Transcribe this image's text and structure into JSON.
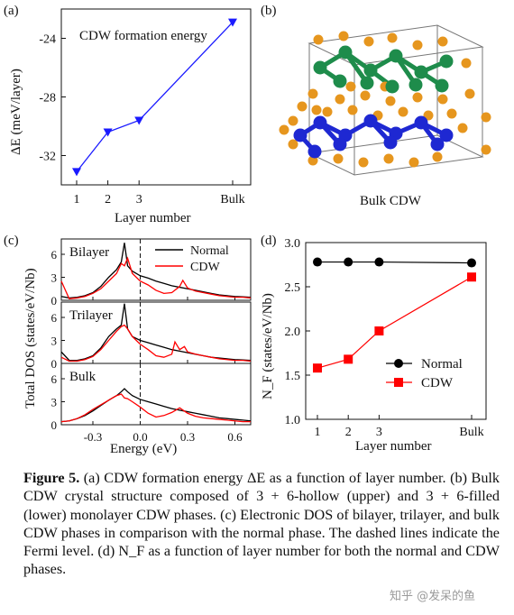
{
  "panel_a": {
    "label": "(a)",
    "annotation": "CDW formation energy",
    "ylabel": "ΔE (meV/layer)",
    "xlabel": "Layer number",
    "color": "#1a1aff"
  },
  "panel_b": {
    "label": "(b)",
    "title": "Bulk CDW"
  },
  "panel_c": {
    "label": "(c)",
    "ylabel": "Total DOS (states/eV/Nb)",
    "xlabel": "Energy (eV)",
    "legend": [
      "Normal",
      "CDW"
    ],
    "subplot_labels": [
      "Bilayer",
      "Trilayer",
      "Bulk"
    ]
  },
  "panel_d": {
    "label": "(d)",
    "ylabel": "N_F (states/eV/Nb)",
    "xlabel": "Layer number",
    "legend": [
      "Normal",
      "CDW"
    ]
  },
  "chart_data": [
    {
      "panel": "a",
      "type": "line",
      "categories": [
        "1",
        "2",
        "3",
        "Bulk"
      ],
      "x": [
        1,
        2,
        3,
        6
      ],
      "values": [
        -33.1,
        -30.4,
        -29.6,
        -22.9
      ],
      "xlabel": "Layer number",
      "ylabel": "ΔE (meV/layer)",
      "yticks": [
        -24,
        -28,
        -32
      ],
      "ylim": [
        -34,
        -22
      ],
      "grid": false
    },
    {
      "panel": "c",
      "type": "line",
      "xlabel": "Energy (eV)",
      "xticks": [
        -0.3,
        0.0,
        0.3,
        0.6
      ],
      "xlim": [
        -0.5,
        0.7
      ],
      "fermi_level": 0.0,
      "subplots": [
        {
          "label": "Bilayer",
          "yticks": [
            0,
            3,
            6
          ],
          "ylim": [
            0,
            8
          ],
          "series": [
            {
              "name": "Normal",
              "x": [
                -0.5,
                -0.45,
                -0.4,
                -0.35,
                -0.3,
                -0.25,
                -0.2,
                -0.15,
                -0.12,
                -0.1,
                -0.08,
                -0.05,
                0.0,
                0.05,
                0.1,
                0.15,
                0.2,
                0.25,
                0.3,
                0.35,
                0.4,
                0.45,
                0.5,
                0.55,
                0.6,
                0.65,
                0.7
              ],
              "y": [
                0.5,
                0.3,
                0.4,
                0.6,
                1.0,
                1.8,
                3.0,
                4.0,
                5.0,
                7.5,
                4.5,
                3.8,
                3.2,
                2.9,
                2.5,
                2.2,
                1.9,
                1.7,
                1.5,
                1.3,
                1.1,
                0.9,
                0.7,
                0.6,
                0.5,
                0.45,
                0.4
              ]
            },
            {
              "name": "CDW",
              "x": [
                -0.5,
                -0.45,
                -0.4,
                -0.35,
                -0.3,
                -0.25,
                -0.2,
                -0.15,
                -0.12,
                -0.1,
                -0.08,
                -0.05,
                0.0,
                0.05,
                0.1,
                0.15,
                0.2,
                0.25,
                0.27,
                0.3,
                0.35,
                0.4,
                0.45,
                0.5,
                0.55,
                0.6,
                0.65,
                0.7
              ],
              "y": [
                2.5,
                0.2,
                0.3,
                0.5,
                0.9,
                1.5,
                2.5,
                3.5,
                4.8,
                4.5,
                5.5,
                3.5,
                2.5,
                2.0,
                1.3,
                0.9,
                1.0,
                1.8,
                2.6,
                1.6,
                1.2,
                1.0,
                0.8,
                0.6,
                0.5,
                0.4,
                0.4,
                0.3
              ]
            }
          ]
        },
        {
          "label": "Trilayer",
          "yticks": [
            0,
            3,
            6
          ],
          "ylim": [
            0,
            8
          ],
          "series": [
            {
              "name": "Normal",
              "x": [
                -0.5,
                -0.45,
                -0.4,
                -0.35,
                -0.3,
                -0.25,
                -0.2,
                -0.15,
                -0.12,
                -0.1,
                -0.08,
                -0.05,
                0.0,
                0.05,
                0.1,
                0.15,
                0.2,
                0.25,
                0.3,
                0.35,
                0.4,
                0.45,
                0.5,
                0.55,
                0.6,
                0.65,
                0.7
              ],
              "y": [
                1.5,
                0.4,
                0.4,
                0.6,
                1.0,
                2.0,
                3.5,
                4.5,
                5.0,
                7.8,
                4.5,
                3.5,
                3.0,
                2.7,
                2.4,
                2.1,
                1.8,
                1.6,
                1.4,
                1.2,
                1.0,
                0.8,
                0.7,
                0.6,
                0.5,
                0.45,
                0.4
              ]
            },
            {
              "name": "CDW",
              "x": [
                -0.5,
                -0.45,
                -0.4,
                -0.35,
                -0.3,
                -0.25,
                -0.2,
                -0.15,
                -0.12,
                -0.1,
                -0.08,
                -0.05,
                0.0,
                0.05,
                0.1,
                0.15,
                0.2,
                0.22,
                0.25,
                0.28,
                0.3,
                0.35,
                0.4,
                0.45,
                0.5,
                0.55,
                0.6,
                0.65,
                0.7
              ],
              "y": [
                0.8,
                0.3,
                0.3,
                0.5,
                0.9,
                1.8,
                3.0,
                4.2,
                4.8,
                5.0,
                4.5,
                3.5,
                2.5,
                1.8,
                1.0,
                0.8,
                1.2,
                2.8,
                1.8,
                2.2,
                1.5,
                1.2,
                1.0,
                0.8,
                0.6,
                0.5,
                0.4,
                0.4,
                0.3
              ]
            }
          ]
        },
        {
          "label": "Bulk",
          "yticks": [
            0,
            3,
            6
          ],
          "ylim": [
            0,
            8
          ],
          "series": [
            {
              "name": "Normal",
              "x": [
                -0.5,
                -0.45,
                -0.4,
                -0.35,
                -0.3,
                -0.25,
                -0.2,
                -0.15,
                -0.12,
                -0.1,
                -0.08,
                -0.05,
                0.0,
                0.05,
                0.1,
                0.15,
                0.2,
                0.25,
                0.3,
                0.35,
                0.4,
                0.45,
                0.5,
                0.55,
                0.6,
                0.65,
                0.7
              ],
              "y": [
                0.4,
                0.5,
                0.8,
                1.2,
                1.8,
                2.5,
                3.2,
                3.8,
                4.3,
                4.7,
                4.3,
                3.8,
                3.3,
                3.0,
                2.7,
                2.4,
                2.1,
                1.9,
                1.7,
                1.5,
                1.3,
                1.1,
                0.9,
                0.8,
                0.7,
                0.6,
                0.5
              ]
            },
            {
              "name": "CDW",
              "x": [
                -0.5,
                -0.45,
                -0.4,
                -0.35,
                -0.3,
                -0.25,
                -0.2,
                -0.15,
                -0.12,
                -0.1,
                -0.08,
                -0.05,
                0.0,
                0.05,
                0.1,
                0.15,
                0.2,
                0.25,
                0.3,
                0.35,
                0.4,
                0.45,
                0.5,
                0.55,
                0.6,
                0.65,
                0.7
              ],
              "y": [
                0.4,
                0.5,
                0.8,
                1.3,
                2.0,
                2.6,
                3.2,
                3.8,
                4.0,
                3.5,
                3.4,
                3.0,
                2.3,
                1.5,
                1.0,
                1.2,
                1.6,
                2.2,
                1.5,
                1.1,
                0.9,
                0.8,
                0.7,
                0.6,
                0.5,
                0.4,
                0.4
              ]
            }
          ]
        }
      ],
      "ylabel": "Total DOS (states/eV/Nb)",
      "legend_position": "top-right"
    },
    {
      "panel": "d",
      "type": "line",
      "categories": [
        "1",
        "2",
        "3",
        "Bulk"
      ],
      "x": [
        1,
        2,
        3,
        6
      ],
      "xlabel": "Layer number",
      "ylabel": "N_F (states/eV/Nb)",
      "yticks": [
        1.0,
        1.5,
        2.0,
        2.5,
        3.0
      ],
      "ylim": [
        1.0,
        3.0
      ],
      "legend_position": "bottom-right",
      "series": [
        {
          "name": "Normal",
          "values": [
            2.78,
            2.78,
            2.78,
            2.77
          ],
          "color": "#000000",
          "marker": "circle"
        },
        {
          "name": "CDW",
          "values": [
            1.58,
            1.68,
            2.0,
            2.61
          ],
          "color": "#ff0000",
          "marker": "square"
        }
      ]
    }
  ],
  "caption": {
    "label": "Figure 5.",
    "text": " (a) CDW formation energy ΔE as a function of layer number. (b) Bulk CDW crystal structure composed of 3 + 6-hollow (upper) and 3 + 6-filled (lower) monolayer CDW phases. (c) Electronic DOS of bilayer, trilayer, and bulk CDW phases in comparison with the normal phase. The dashed lines indicate the Fermi level. (d) N_F as a function of layer number for both the normal and CDW phases."
  },
  "watermark": "知乎 @发呆的鱼",
  "colors": {
    "normal": "#000000",
    "cdw": "#ff0000",
    "panel_a_line": "#1a1aff",
    "atom_orange": "#e6961e",
    "atom_green": "#1e8c4b",
    "atom_blue": "#1e28d2"
  }
}
